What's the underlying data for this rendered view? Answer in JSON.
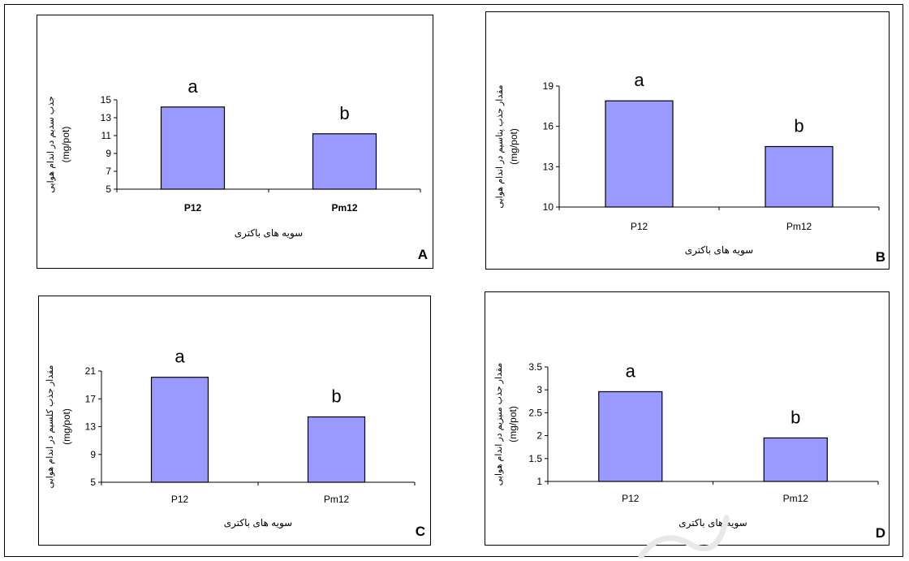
{
  "chart_data": [
    {
      "panel_label": "A",
      "type": "bar",
      "categories": [
        "P12",
        "Pm12"
      ],
      "values": [
        14.2,
        11.2
      ],
      "letters": [
        "a",
        "b"
      ],
      "xlabel": "سویه های باکتری",
      "ylabel": "جذب سدیم در اندام هوایی",
      "ylabel_unit": "(mg/pot)",
      "ylim": [
        5,
        15
      ],
      "yticks": [
        "5",
        "7",
        "9",
        "11",
        "13",
        "15"
      ],
      "bar_color": "#9999ff",
      "bold_category_labels": true,
      "grid": false
    },
    {
      "panel_label": "B",
      "type": "bar",
      "categories": [
        "P12",
        "Pm12"
      ],
      "values": [
        17.9,
        14.5
      ],
      "letters": [
        "a",
        "b"
      ],
      "xlabel": "سویه های باکتری",
      "ylabel": "مقدار جذب پتاسیم در اندام هوایی",
      "ylabel_unit": "(mg/pot)",
      "ylim": [
        10,
        19
      ],
      "yticks": [
        "10",
        "13",
        "16",
        "19"
      ],
      "bar_color": "#9999ff",
      "bold_category_labels": false,
      "grid": false
    },
    {
      "panel_label": "C",
      "type": "bar",
      "categories": [
        "P12",
        "Pm12"
      ],
      "values": [
        20.1,
        14.4
      ],
      "letters": [
        "a",
        "b"
      ],
      "xlabel": "سویه های باکتری",
      "ylabel": "مقدار جذب کلسیم در اندام هوایی",
      "ylabel_unit": "(mg/pot)",
      "ylim": [
        5,
        21
      ],
      "yticks": [
        "5",
        "9",
        "13",
        "17",
        "21"
      ],
      "bar_color": "#9999ff",
      "bold_category_labels": false,
      "grid": false
    },
    {
      "panel_label": "D",
      "type": "bar",
      "categories": [
        "P12",
        "Pm12"
      ],
      "values": [
        2.96,
        1.95
      ],
      "letters": [
        "a",
        "b"
      ],
      "xlabel": "سویه های باکتری",
      "ylabel": "مقدار جذب منیزیم در اندام هوایی",
      "ylabel_unit": "(mg/pot)",
      "ylim": [
        1,
        3.5
      ],
      "yticks": [
        "1",
        "1.5",
        "2",
        "2.5",
        "3",
        "3.5"
      ],
      "bar_color": "#9999ff",
      "bold_category_labels": false,
      "grid": false
    }
  ]
}
